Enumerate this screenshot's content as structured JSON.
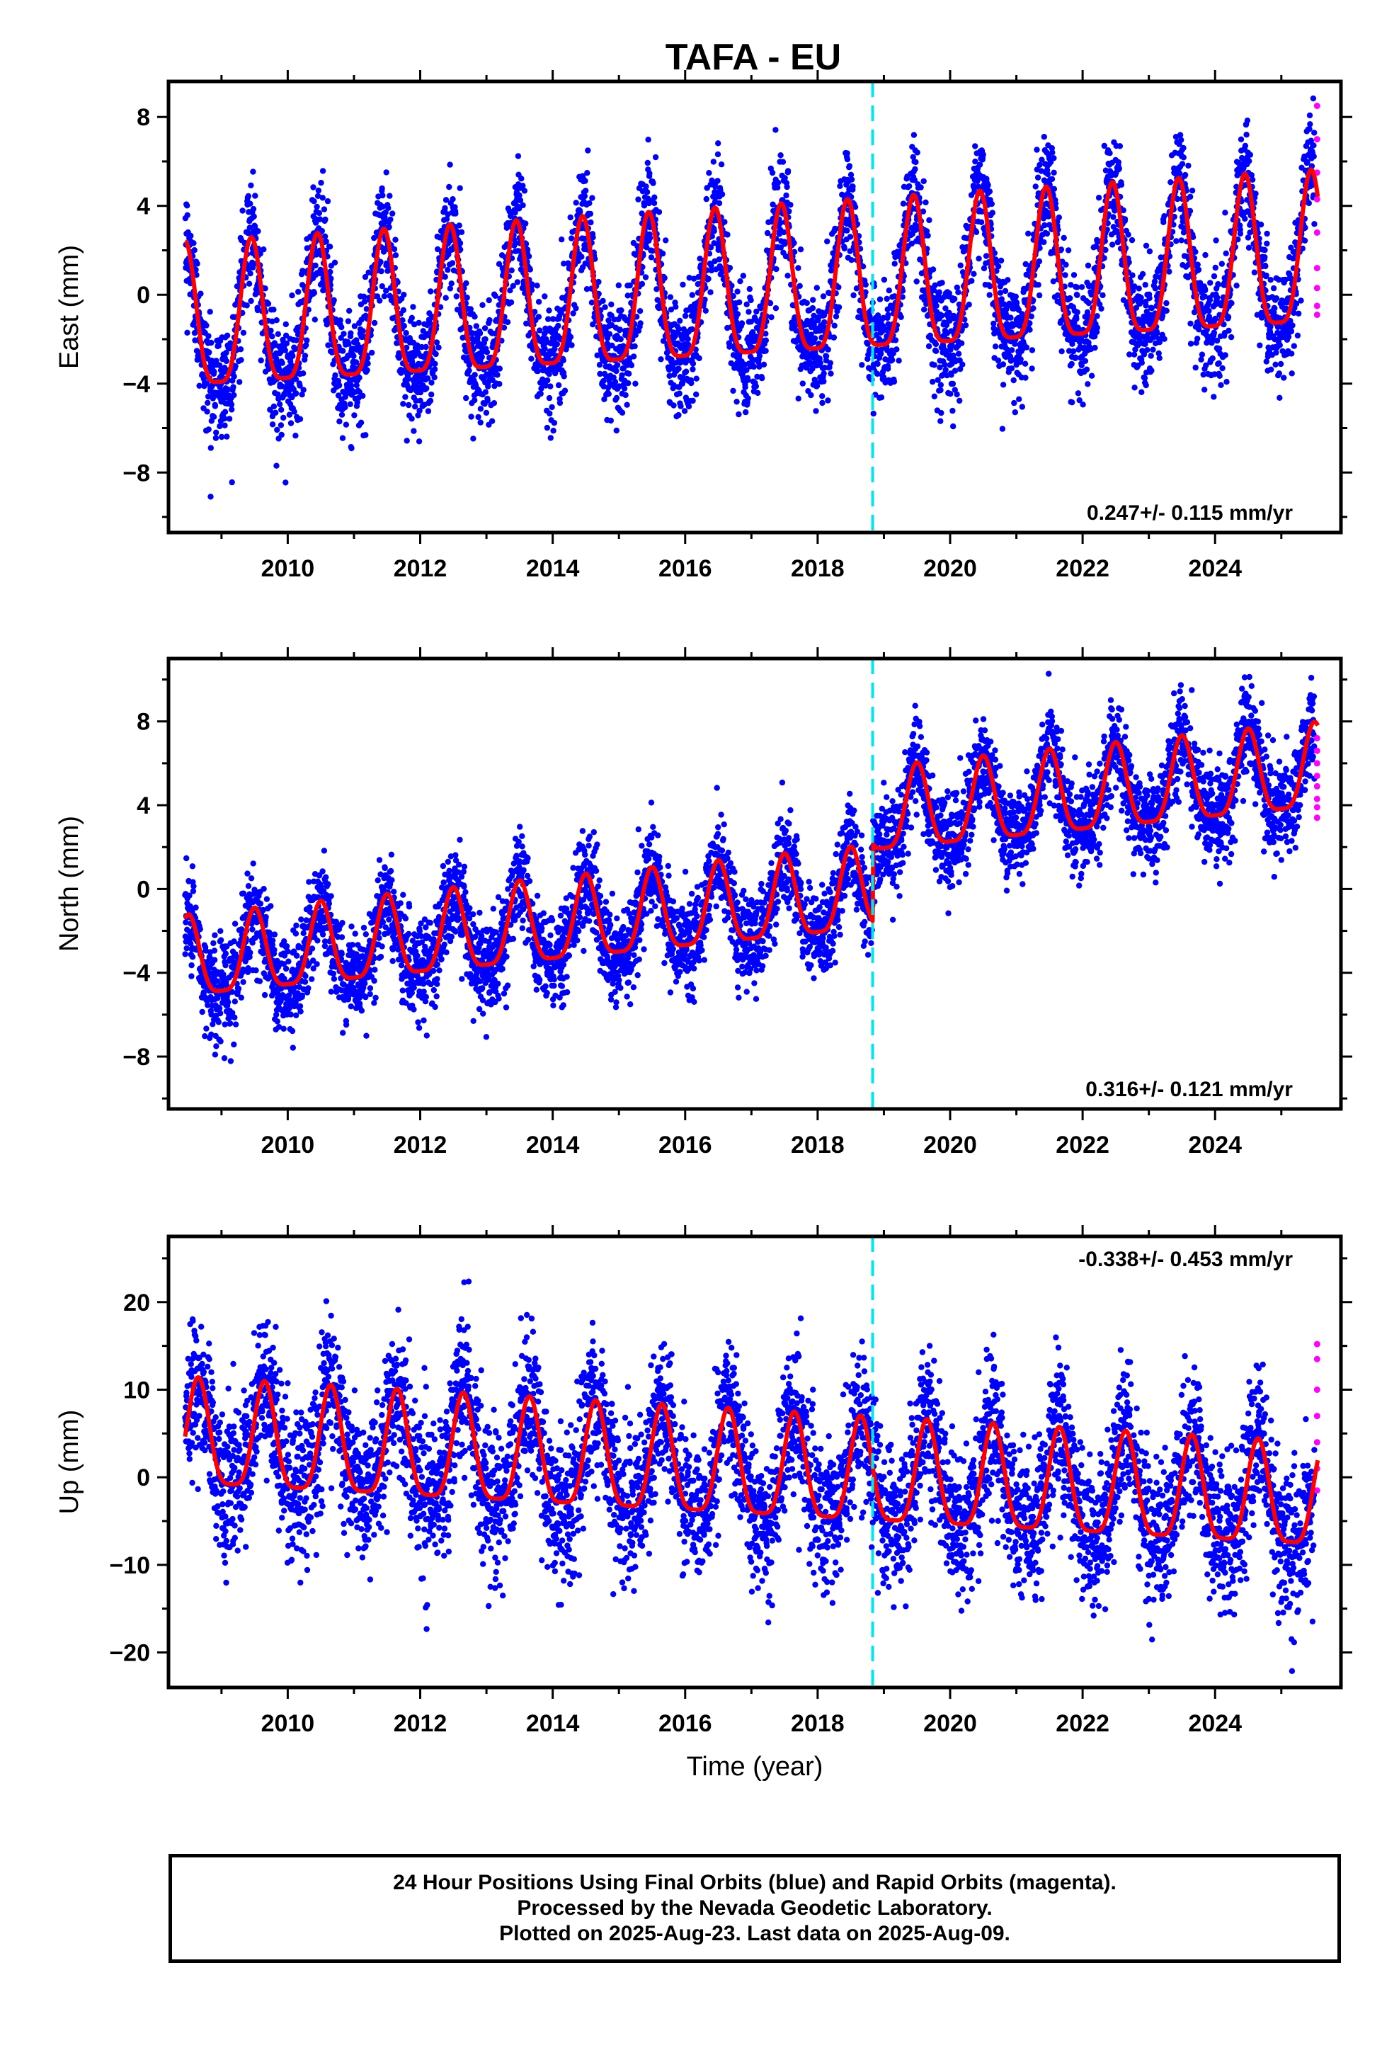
{
  "title": "TAFA - EU",
  "footer": {
    "line1": "24 Hour Positions Using Final Orbits (blue) and Rapid Orbits (magenta).",
    "line2": "Processed by the Nevada Geodetic Laboratory.",
    "line3": "Plotted on 2025-Aug-23. Last data on 2025-Aug-09."
  },
  "colors": {
    "final_orbits": "#0000ff",
    "rapid_orbits": "#ff00ff",
    "model_fit": "#ff0000",
    "event_line": "#00e5ee"
  },
  "chart_data": [
    {
      "type": "scatter",
      "panel": "East",
      "ylabel": "East (mm)",
      "xlabel": "",
      "xlim": [
        2008.2,
        2025.9
      ],
      "ylim": [
        -10.7,
        9.6
      ],
      "xticks": [
        2010,
        2012,
        2014,
        2016,
        2018,
        2020,
        2022,
        2024
      ],
      "yticks": [
        -8,
        -4,
        0,
        4,
        8
      ],
      "ytick_labels": [
        "−8",
        "−4",
        "0",
        "4",
        "8"
      ],
      "xtick_labels": [
        "2010",
        "2012",
        "2014",
        "2016",
        "2018",
        "2020",
        "2022",
        "2024"
      ],
      "rate_label": "0.247+/- 0.115 mm/yr",
      "rate_position": "bottom-right",
      "event_x": 2018.83,
      "series": [
        {
          "model": "final_orbits_points",
          "scatter_sd": 1.3,
          "data_start": 2008.45,
          "data_end": 2025.5
        },
        {
          "model": "seasonal_fit"
        }
      ],
      "fit": {
        "start": 2008.45,
        "end": 2025.55,
        "amplitude_start": 3.2,
        "amplitude_end": 3.4,
        "offset_start": -1.6,
        "offset_end": 1.4,
        "annual_peak_phase": 0.45
      },
      "rapid_orbit_values": [
        8.5,
        7.0,
        5.5,
        4.3,
        2.8,
        1.2,
        0.3,
        -0.5,
        -0.9
      ]
    },
    {
      "type": "scatter",
      "panel": "North",
      "ylabel": "North (mm)",
      "xlabel": "",
      "xlim": [
        2008.2,
        2025.9
      ],
      "ylim": [
        -10.5,
        11.0
      ],
      "xticks": [
        2010,
        2012,
        2014,
        2016,
        2018,
        2020,
        2022,
        2024
      ],
      "yticks": [
        -8,
        -4,
        0,
        4,
        8
      ],
      "ytick_labels": [
        "−8",
        "−4",
        "0",
        "4",
        "8"
      ],
      "xtick_labels": [
        "2010",
        "2012",
        "2014",
        "2016",
        "2018",
        "2020",
        "2022",
        "2024"
      ],
      "rate_label": "0.316+/- 0.121 mm/yr",
      "rate_position": "bottom-right",
      "event_x": 2018.83,
      "step_at_event": 3.7,
      "series": [
        {
          "model": "final_orbits_points",
          "scatter_sd": 1.1,
          "data_start": 2008.45,
          "data_end": 2025.5
        },
        {
          "model": "seasonal_fit"
        }
      ],
      "fit": {
        "start": 2008.45,
        "end": 2025.55,
        "amplitude_start": 1.9,
        "amplitude_end": 2.0,
        "offset_start": -3.6,
        "offset_end": 5.5,
        "annual_peak_phase": 0.5
      },
      "rapid_orbit_values": [
        7.2,
        6.6,
        6.0,
        5.4,
        4.9,
        4.3,
        3.9,
        3.4
      ]
    },
    {
      "type": "scatter",
      "panel": "Up",
      "ylabel": "Up (mm)",
      "xlabel": "Time (year)",
      "xlim": [
        2008.2,
        2025.9
      ],
      "ylim": [
        -24,
        27.5
      ],
      "xticks": [
        2010,
        2012,
        2014,
        2016,
        2018,
        2020,
        2022,
        2024
      ],
      "yticks": [
        -20,
        -10,
        0,
        10,
        20
      ],
      "ytick_labels": [
        "−20",
        "−10",
        "0",
        "10",
        "20"
      ],
      "xtick_labels": [
        "2010",
        "2012",
        "2014",
        "2016",
        "2018",
        "2020",
        "2022",
        "2024"
      ],
      "rate_label": "-0.338+/- 0.453 mm/yr",
      "rate_position": "top-right",
      "event_x": 2018.83,
      "series": [
        {
          "model": "final_orbits_points",
          "scatter_sd": 4.2,
          "data_start": 2008.45,
          "data_end": 2025.5
        },
        {
          "model": "seasonal_fit"
        }
      ],
      "fit": {
        "start": 2008.45,
        "end": 2025.55,
        "amplitude_start": 6.0,
        "amplitude_end": 5.8,
        "offset_start": 4.0,
        "offset_end": -3.2,
        "annual_peak_phase": 0.65
      },
      "rapid_orbit_values": [
        15.2,
        13.5,
        10.0,
        7.0,
        4.0,
        1.0,
        -1.5
      ]
    }
  ]
}
